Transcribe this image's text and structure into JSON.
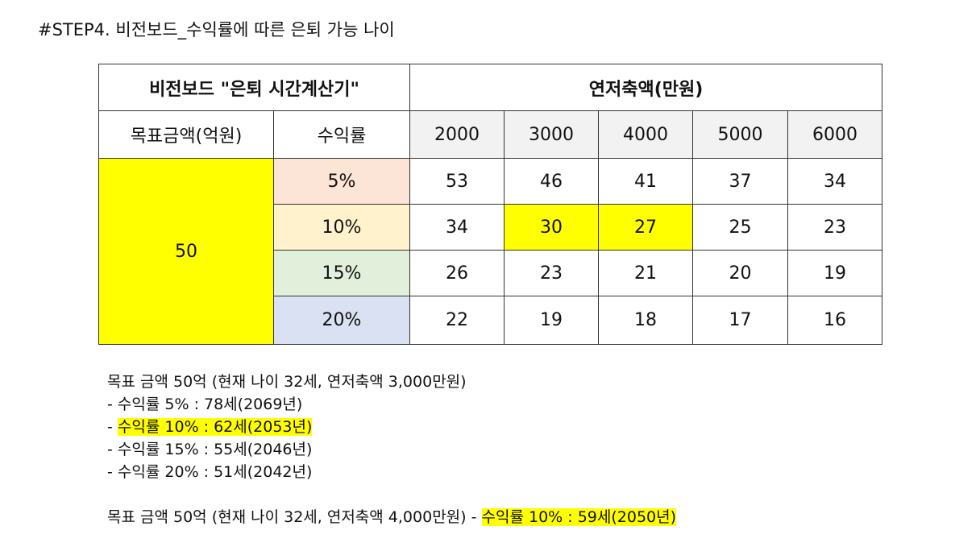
{
  "title": "#STEP4. 비전보드_수익률에 따른 은퇴 가능 나이",
  "table": {
    "title": "비전보드 \"은퇴 시간계산기\"",
    "savings_header": "연저축액(만원)",
    "target_header": "목표금액(억원)",
    "rate_header": "수익률",
    "target_value": "50",
    "columns": [
      "2000",
      "3000",
      "4000",
      "5000",
      "6000"
    ],
    "colors": {
      "highlight": "#ffff00",
      "rate_5": "#fce4d6",
      "rate_10": "#fff2cc",
      "rate_15": "#e2efda",
      "rate_20": "#d9e1f2",
      "column_header": "#f2f2f2"
    },
    "rows": [
      {
        "rate": "5%",
        "values": [
          "53",
          "46",
          "41",
          "37",
          "34"
        ]
      },
      {
        "rate": "10%",
        "values": [
          "34",
          "30",
          "27",
          "25",
          "23"
        ]
      },
      {
        "rate": "15%",
        "values": [
          "26",
          "23",
          "21",
          "20",
          "19"
        ]
      },
      {
        "rate": "20%",
        "values": [
          "22",
          "19",
          "18",
          "17",
          "16"
        ]
      }
    ]
  },
  "notes": {
    "block1_heading": "목표 금액 50억 (현재 나이 32세, 연저축액 3,000만원)",
    "block1_items": [
      {
        "prefix": "- ",
        "text": "수익률 5% : 78세(2069년)"
      },
      {
        "prefix": "- ",
        "text": "수익률 10% : 62세(2053년)"
      },
      {
        "prefix": "- ",
        "text": "수익률 15% : 55세(2046년)"
      },
      {
        "prefix": "- ",
        "text": "수익률 20% : 51세(2042년)"
      }
    ],
    "block2_heading": "목표 금액 50억 (현재 나이 32세, 연저축액 4,000만원) - ",
    "block2_highlight": "수익률 10% : 59세(2050년)"
  }
}
